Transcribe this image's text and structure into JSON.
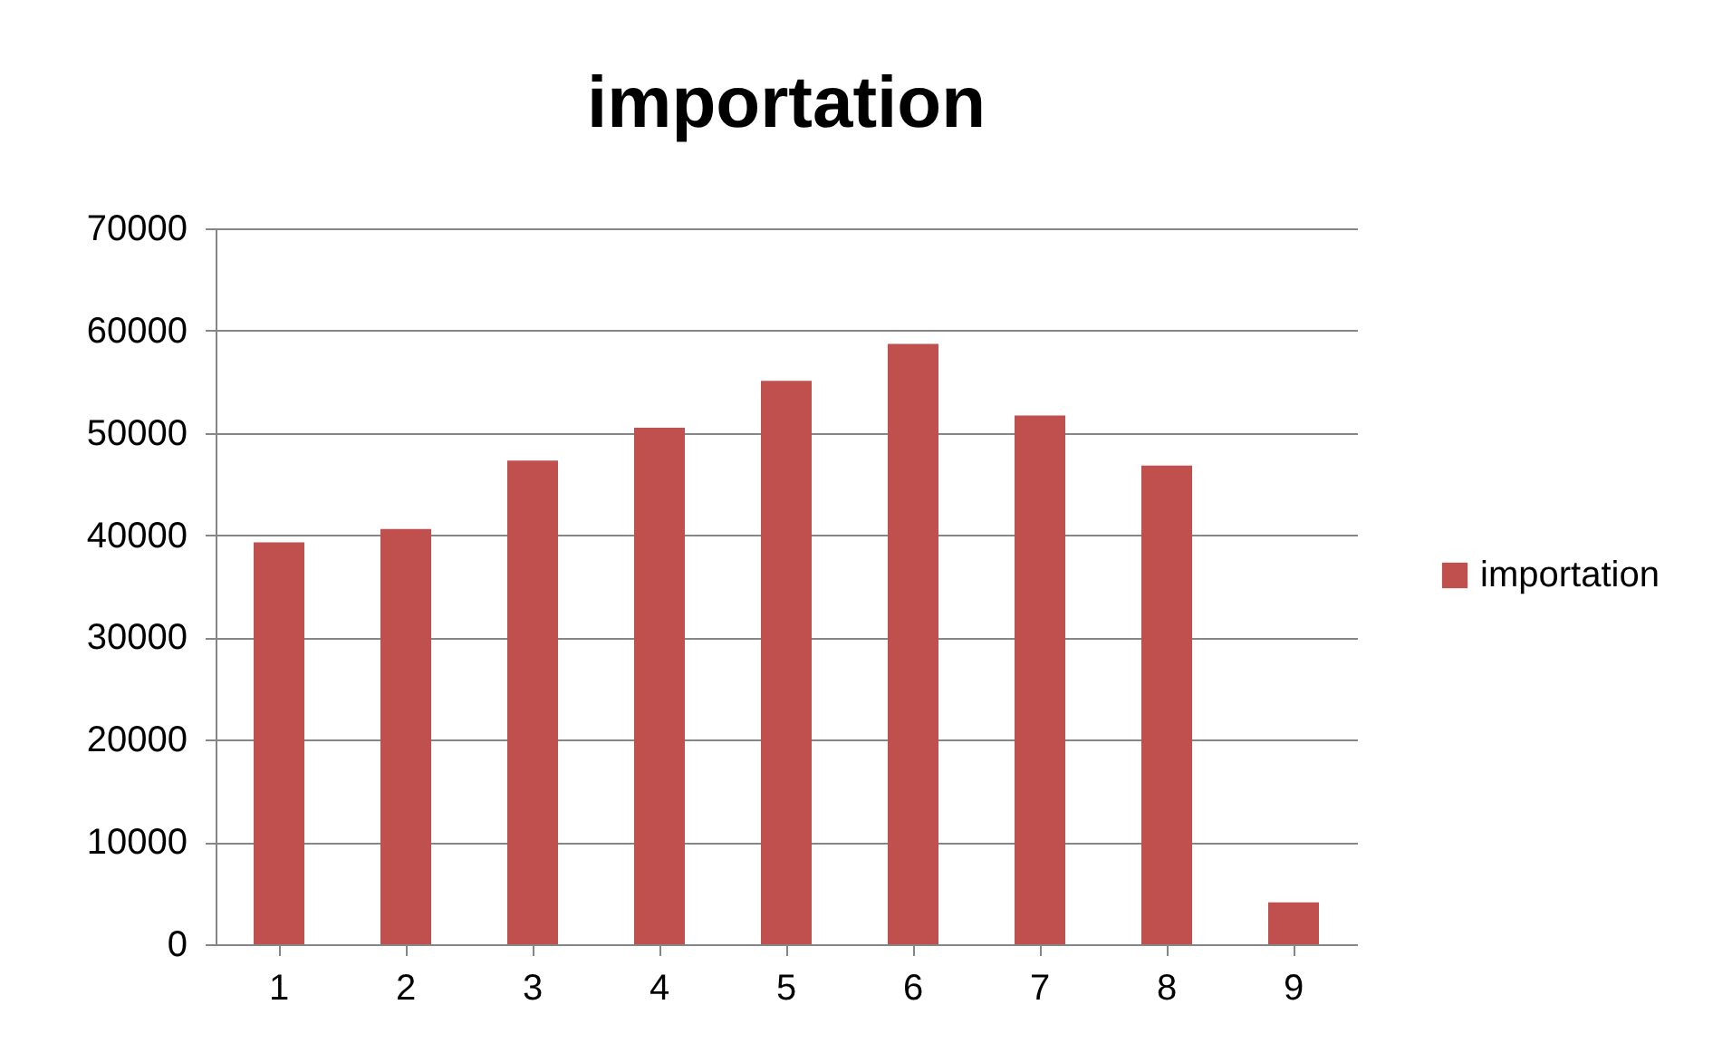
{
  "chart_data": {
    "type": "bar",
    "title": "importation",
    "categories": [
      "1",
      "2",
      "3",
      "4",
      "5",
      "6",
      "7",
      "8",
      "9"
    ],
    "series": [
      {
        "name": "importation",
        "color": "#c0504d",
        "values": [
          39300,
          40600,
          47300,
          50500,
          55100,
          58700,
          51700,
          46800,
          4100
        ]
      }
    ],
    "ylim": [
      0,
      70000
    ],
    "yticks": [
      0,
      10000,
      20000,
      30000,
      40000,
      50000,
      60000,
      70000
    ],
    "grid": "y",
    "legend": "right"
  }
}
